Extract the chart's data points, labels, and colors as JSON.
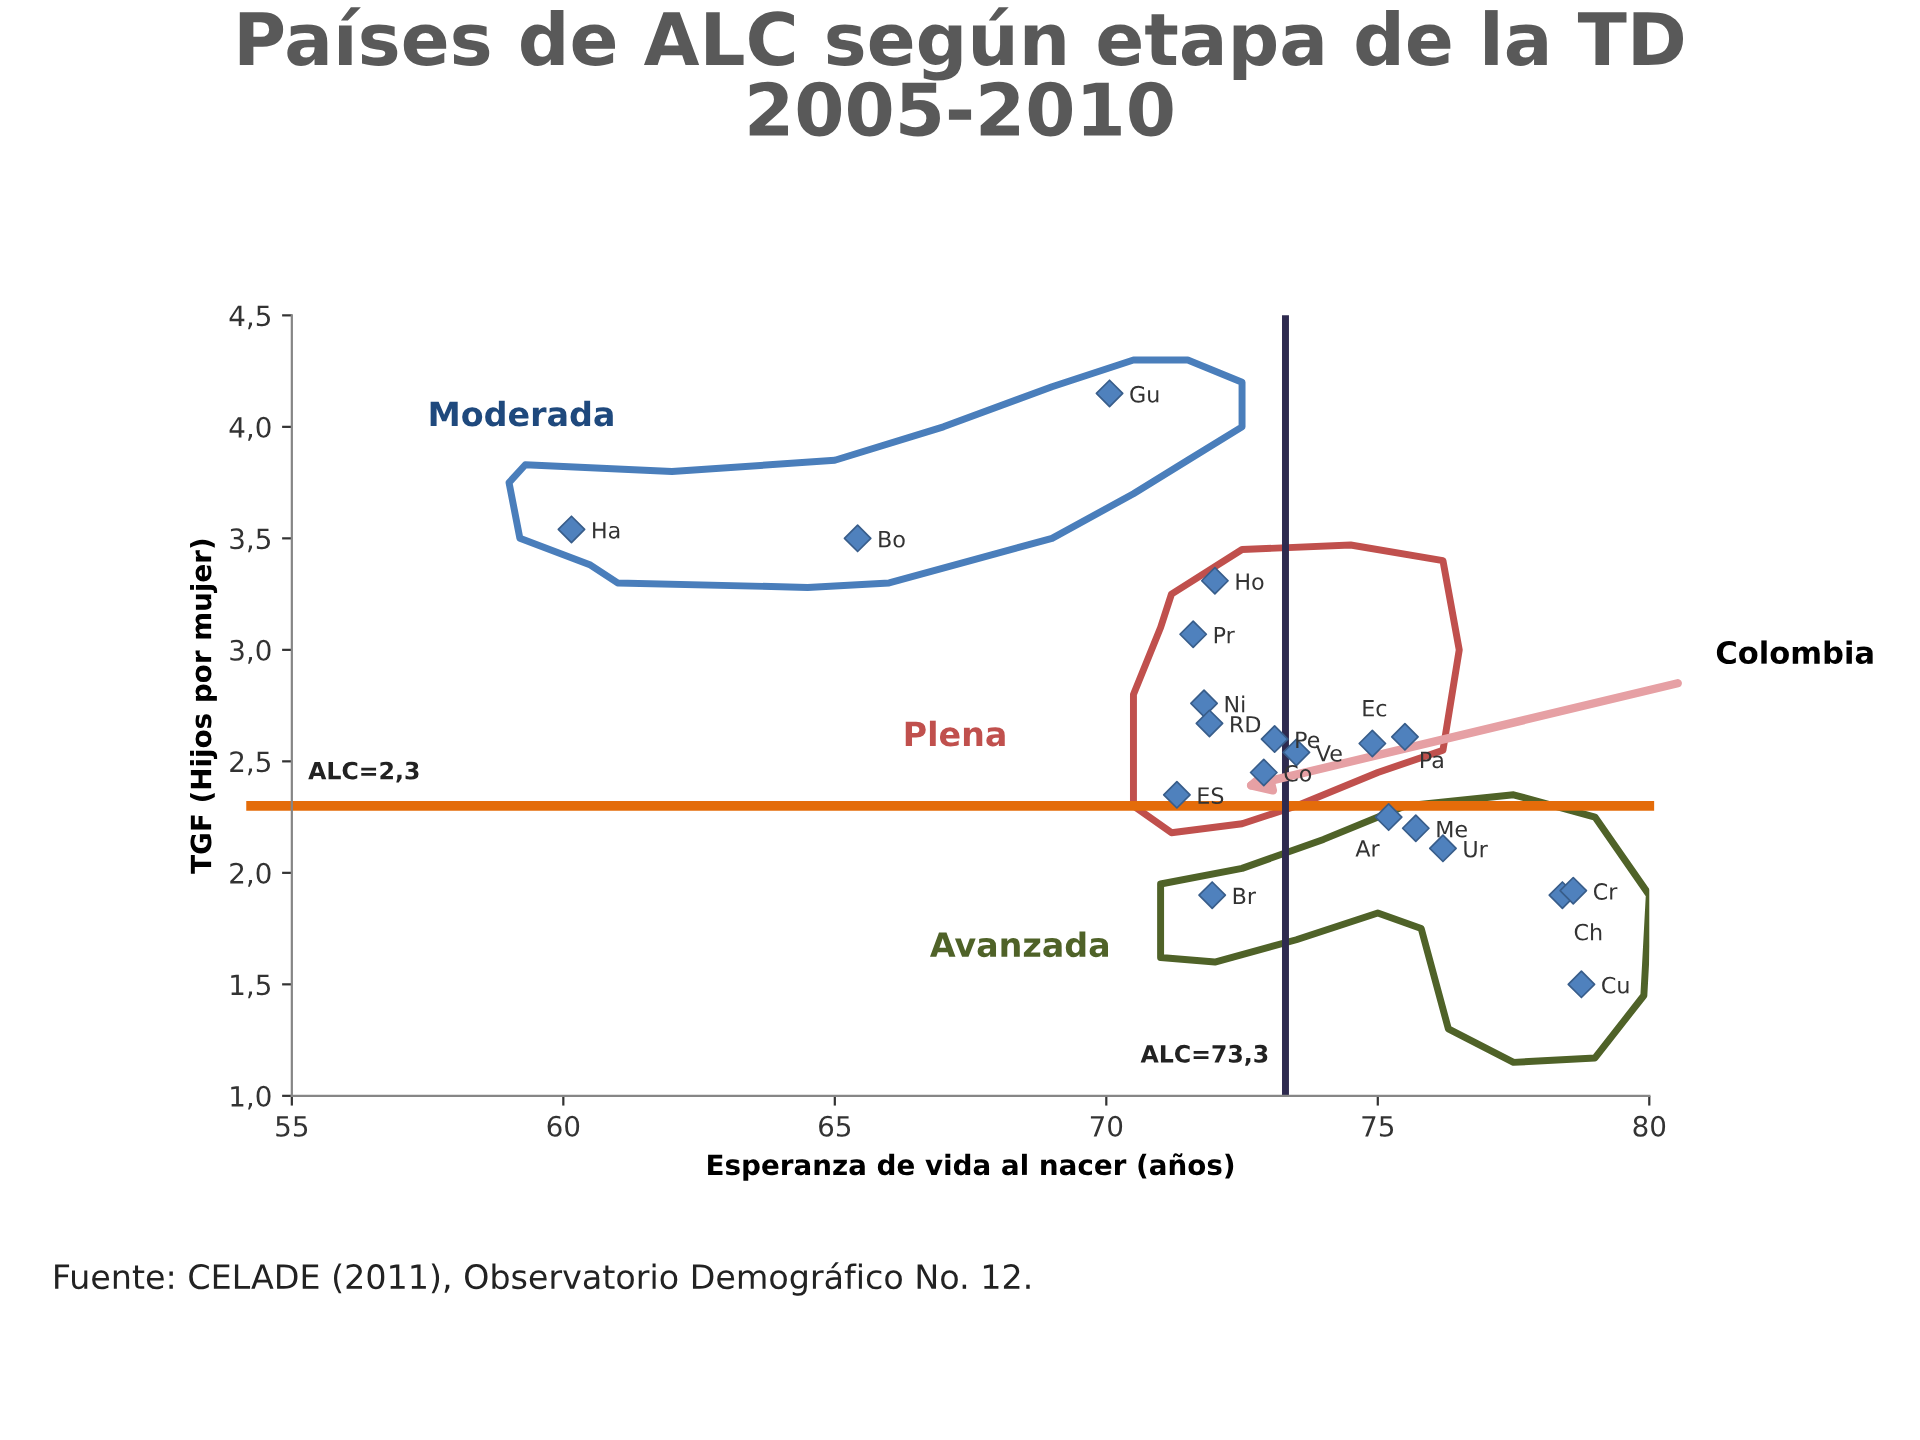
{
  "chart_data": {
    "type": "scatter",
    "title": "Países de ALC según etapa de la TD\n2005-2010",
    "xlabel": "Esperanza de vida al nacer (años)",
    "ylabel": "TGF (Hijos por mujer)",
    "x": [
      70.06,
      60.15,
      65.42,
      72.0,
      71.6,
      71.8,
      71.9,
      73.1,
      73.5,
      74.9,
      75.5,
      72.9,
      71.3,
      75.2,
      75.7,
      76.2,
      71.95,
      78.4,
      78.6,
      78.75
    ],
    "series": [
      {
        "color": "#4f81bd",
        "values": [
          4.15,
          3.54,
          3.5,
          3.31,
          3.07,
          2.76,
          2.67,
          2.6,
          2.54,
          2.58,
          2.61,
          2.45,
          2.35,
          2.25,
          2.2,
          2.11,
          1.9,
          1.9,
          1.92,
          1.5
        ]
      }
    ],
    "marker": "diamond",
    "xlim": [
      55,
      80
    ],
    "ylim": [
      1,
      4.5
    ],
    "xticks": [
      55,
      60,
      65,
      70,
      75,
      80
    ],
    "yticks": [
      {
        "value": 1.0,
        "label": "1,0"
      },
      {
        "value": 1.5,
        "label": "1,5"
      },
      {
        "value": 2.0,
        "label": "2,0"
      },
      {
        "value": 2.5,
        "label": "2,5"
      },
      {
        "value": 3.0,
        "label": "3,0"
      },
      {
        "value": 3.5,
        "label": "3,5"
      },
      {
        "value": 4.0,
        "label": "4,0"
      },
      {
        "value": 4.5,
        "label": "4,5"
      }
    ],
    "grid": false,
    "ref_lines": [
      {
        "axis": "y",
        "value": 2.3,
        "label": "ALC=2,3",
        "color": "#e46c0a"
      },
      {
        "axis": "x",
        "value": 73.3,
        "label": "ALC=73,3",
        "color": "#2e2a4f"
      }
    ],
    "annotations": [
      {
        "text": "Gu",
        "x": 70.06,
        "y": 4.15
      },
      {
        "text": "Ha",
        "x": 60.15,
        "y": 3.54
      },
      {
        "text": "Bo",
        "x": 65.42,
        "y": 3.5
      },
      {
        "text": "Ho",
        "x": 72.0,
        "y": 3.31
      },
      {
        "text": "Pr",
        "x": 71.6,
        "y": 3.07
      },
      {
        "text": "Ni",
        "x": 71.8,
        "y": 2.76
      },
      {
        "text": "RD",
        "x": 71.9,
        "y": 2.67
      },
      {
        "text": "Pe",
        "x": 73.1,
        "y": 2.6
      },
      {
        "text": "Ve",
        "x": 73.5,
        "y": 2.54
      },
      {
        "text": "Ec",
        "x": 74.9,
        "y": 2.58
      },
      {
        "text": "Pa",
        "x": 75.5,
        "y": 2.61
      },
      {
        "text": "Co",
        "x": 72.9,
        "y": 2.45
      },
      {
        "text": "ES",
        "x": 71.3,
        "y": 2.35
      },
      {
        "text": "Ar",
        "x": 75.2,
        "y": 2.25
      },
      {
        "text": "Me",
        "x": 75.7,
        "y": 2.2
      },
      {
        "text": "Ur",
        "x": 76.2,
        "y": 2.11
      },
      {
        "text": "Br",
        "x": 71.95,
        "y": 1.9
      },
      {
        "text": "Ch",
        "x": 78.4,
        "y": 1.9
      },
      {
        "text": "Cr",
        "x": 78.6,
        "y": 1.92
      },
      {
        "text": "Cu",
        "x": 78.75,
        "y": 1.5
      },
      "Moderada",
      "Plena",
      "Avanzada",
      "Colombia",
      "Fuente: CELADE (2011), Observatorio Demográfico No. 12."
    ]
  }
}
